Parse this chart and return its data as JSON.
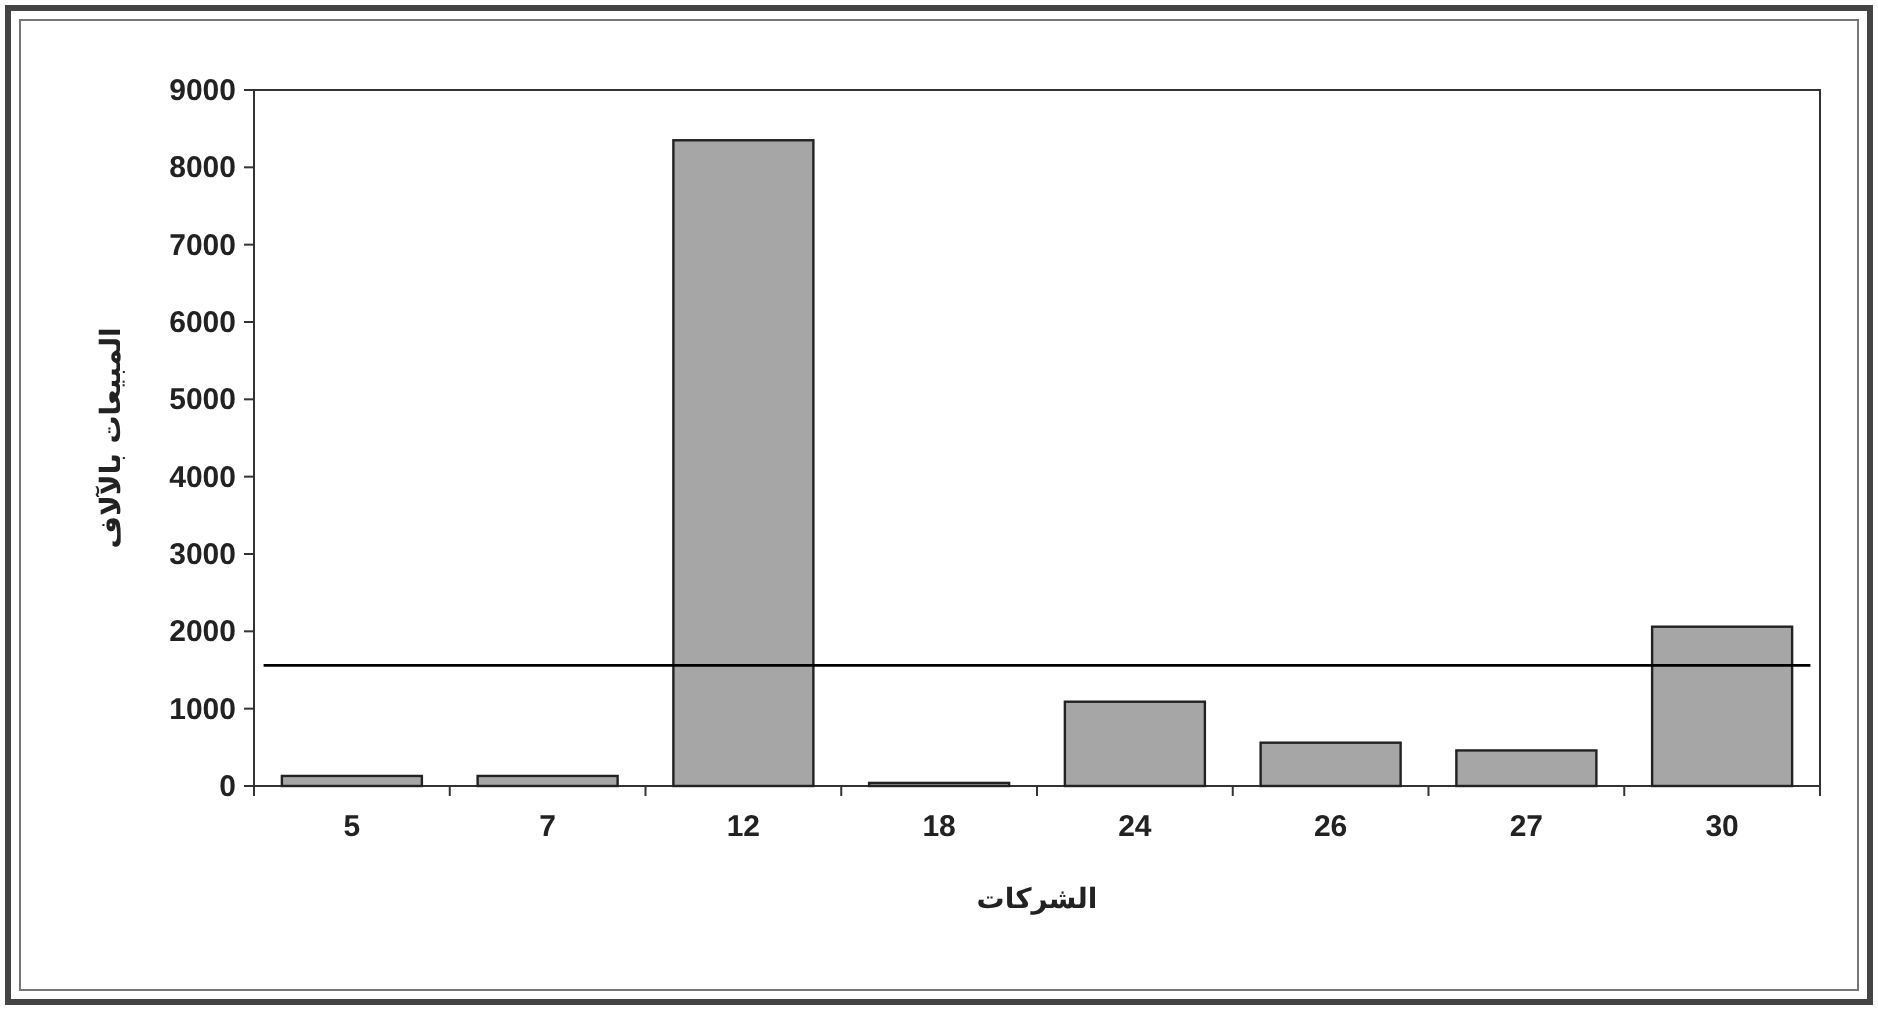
{
  "chart_data": {
    "type": "bar",
    "xlabel": "الشركات",
    "ylabel": "المبيعات بالآلاف",
    "categories": [
      "5",
      "7",
      "12",
      "18",
      "24",
      "26",
      "27",
      "30"
    ],
    "values": [
      130,
      130,
      8350,
      40,
      1090,
      560,
      460,
      2060
    ],
    "color": "#a6a6a6",
    "ylim": [
      0,
      9000
    ],
    "yticks": [
      0,
      1000,
      2000,
      3000,
      4000,
      5000,
      6000,
      7000,
      8000,
      9000
    ],
    "ref_lines": [
      {
        "axis": "y",
        "value": 1560,
        "color": "#000000"
      }
    ]
  }
}
